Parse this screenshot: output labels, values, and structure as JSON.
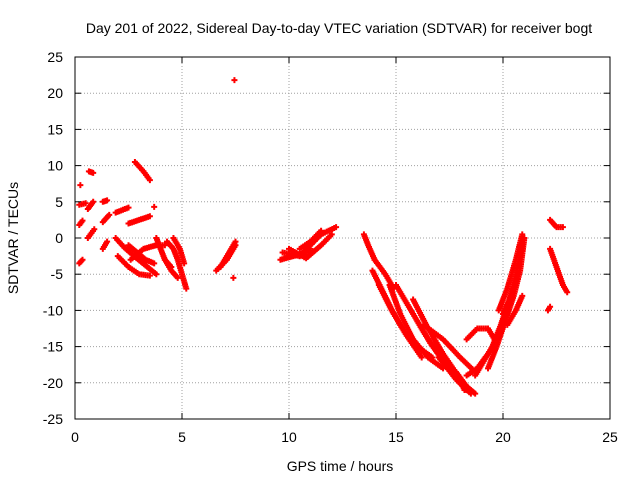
{
  "chart_data": {
    "type": "scatter",
    "title": "Day 201 of 2022, Sidereal Day-to-day VTEC variation (SDTVAR) for receiver bogt",
    "xlabel": "GPS time / hours",
    "ylabel": "SDTVAR / TECUs",
    "xlim": [
      0,
      25
    ],
    "ylim": [
      -25,
      25
    ],
    "xticks": [
      "0",
      "5",
      "10",
      "15",
      "20",
      "25"
    ],
    "yticks": [
      "-25",
      "-20",
      "-15",
      "-10",
      "-5",
      "0",
      "5",
      "10",
      "15",
      "20",
      "25"
    ],
    "grid": true,
    "marker": "plus",
    "series_color": "#ff0000",
    "segments": [
      [
        [
          0.2,
          -3.5
        ],
        [
          0.35,
          -3.0
        ]
      ],
      [
        [
          0.2,
          1.8
        ],
        [
          0.35,
          2.4
        ]
      ],
      [
        [
          0.2,
          4.6
        ],
        [
          0.5,
          4.8
        ]
      ],
      [
        [
          0.25,
          7.3
        ]
      ],
      [
        [
          0.6,
          4.0
        ],
        [
          0.85,
          5.0
        ]
      ],
      [
        [
          0.65,
          9.2
        ],
        [
          0.85,
          9.0
        ]
      ],
      [
        [
          0.6,
          0.0
        ],
        [
          0.9,
          1.2
        ]
      ],
      [
        [
          1.3,
          5.0
        ],
        [
          1.5,
          5.2
        ]
      ],
      [
        [
          1.3,
          2.2
        ],
        [
          1.6,
          3.2
        ]
      ],
      [
        [
          1.3,
          -1.5
        ],
        [
          1.5,
          -0.5
        ]
      ],
      [
        [
          1.9,
          3.5
        ],
        [
          2.5,
          4.2
        ]
      ],
      [
        [
          2.5,
          2.0
        ],
        [
          3.0,
          2.5
        ],
        [
          3.5,
          3.0
        ]
      ],
      [
        [
          3.7,
          4.3
        ]
      ],
      [
        [
          1.9,
          0.0
        ],
        [
          2.3,
          -1.3
        ],
        [
          2.8,
          -2.6
        ],
        [
          3.3,
          -3.8
        ],
        [
          3.8,
          -5.0
        ]
      ],
      [
        [
          2.0,
          -2.5
        ],
        [
          2.5,
          -4.0
        ],
        [
          3.0,
          -5.0
        ],
        [
          3.5,
          -5.2
        ]
      ],
      [
        [
          2.5,
          -1.0
        ],
        [
          2.9,
          -2.0
        ],
        [
          3.3,
          -3.0
        ],
        [
          3.7,
          -3.5
        ]
      ],
      [
        [
          2.8,
          10.5
        ],
        [
          3.2,
          9.2
        ],
        [
          3.5,
          8.0
        ]
      ],
      [
        [
          2.6,
          -3.0
        ],
        [
          3.2,
          -1.5
        ],
        [
          3.8,
          -1.0
        ],
        [
          4.2,
          -1.0
        ]
      ],
      [
        [
          3.8,
          0.0
        ],
        [
          4.0,
          -1.5
        ],
        [
          4.2,
          -3.0
        ],
        [
          4.5,
          -4.0
        ]
      ],
      [
        [
          4.3,
          -0.5
        ],
        [
          4.6,
          -1.5
        ],
        [
          4.8,
          -3.0
        ],
        [
          5.0,
          -5.0
        ],
        [
          5.2,
          -7.0
        ]
      ],
      [
        [
          4.6,
          0.0
        ],
        [
          4.9,
          -1.5
        ],
        [
          5.1,
          -3.5
        ]
      ],
      [
        [
          4.2,
          -3.0
        ],
        [
          4.5,
          -4.5
        ],
        [
          4.8,
          -5.5
        ]
      ],
      [
        [
          6.6,
          -4.5
        ],
        [
          7.1,
          -3.0
        ],
        [
          7.5,
          -1.0
        ]
      ],
      [
        [
          6.8,
          -4.0
        ],
        [
          7.2,
          -2.0
        ],
        [
          7.5,
          -0.5
        ]
      ],
      [
        [
          7.4,
          -5.5
        ]
      ],
      [
        [
          7.45,
          21.8
        ]
      ],
      [
        [
          9.6,
          -3.0
        ],
        [
          10.2,
          -2.5
        ],
        [
          10.8,
          -2.0
        ]
      ],
      [
        [
          9.7,
          -2.0
        ],
        [
          10.5,
          -2.5
        ],
        [
          11.0,
          -1.5
        ]
      ],
      [
        [
          10.0,
          -1.5
        ],
        [
          10.8,
          -2.8
        ],
        [
          11.5,
          -1.0
        ],
        [
          12.0,
          0.5
        ]
      ],
      [
        [
          10.5,
          -2.5
        ],
        [
          11.0,
          -1.0
        ],
        [
          11.5,
          0.5
        ],
        [
          12.2,
          1.5
        ]
      ],
      [
        [
          10.5,
          -1.5
        ],
        [
          11.0,
          -0.5
        ],
        [
          11.5,
          1.0
        ]
      ],
      [
        [
          13.5,
          0.5
        ],
        [
          13.7,
          -1.0
        ],
        [
          14.0,
          -3.0
        ]
      ],
      [
        [
          14.0,
          -3.0
        ],
        [
          14.5,
          -5.0
        ],
        [
          14.9,
          -7.0
        ]
      ],
      [
        [
          13.9,
          -4.5
        ],
        [
          14.4,
          -7.5
        ],
        [
          14.9,
          -10.5
        ],
        [
          15.5,
          -13.5
        ],
        [
          16.2,
          -16.5
        ]
      ],
      [
        [
          14.2,
          -6.5
        ],
        [
          14.8,
          -10.0
        ],
        [
          15.4,
          -13.0
        ],
        [
          16.0,
          -15.0
        ],
        [
          16.7,
          -16.5
        ]
      ],
      [
        [
          14.7,
          -6.5
        ],
        [
          15.2,
          -10.5
        ],
        [
          15.8,
          -14.0
        ],
        [
          16.5,
          -16.5
        ],
        [
          17.2,
          -18.0
        ]
      ],
      [
        [
          15.0,
          -6.5
        ],
        [
          15.7,
          -10.0
        ],
        [
          16.4,
          -13.5
        ],
        [
          17.1,
          -16.5
        ],
        [
          17.8,
          -19.0
        ]
      ],
      [
        [
          15.8,
          -8.5
        ],
        [
          16.5,
          -12.5
        ],
        [
          17.2,
          -16.0
        ],
        [
          17.9,
          -19.0
        ],
        [
          18.2,
          -21.0
        ]
      ],
      [
        [
          16.0,
          -11.5
        ],
        [
          16.6,
          -14.5
        ],
        [
          17.2,
          -17.0
        ],
        [
          17.8,
          -19.5
        ],
        [
          18.3,
          -21.0
        ]
      ],
      [
        [
          16.3,
          -12.0
        ],
        [
          17.2,
          -14.0
        ],
        [
          18.0,
          -16.5
        ],
        [
          18.7,
          -18.5
        ]
      ],
      [
        [
          17.0,
          -16.5
        ],
        [
          17.8,
          -19.5
        ],
        [
          18.5,
          -21.5
        ]
      ],
      [
        [
          17.8,
          -18.5
        ],
        [
          18.3,
          -20.5
        ],
        [
          18.7,
          -21.5
        ]
      ],
      [
        [
          18.3,
          -14.0
        ],
        [
          18.8,
          -12.5
        ],
        [
          19.3,
          -12.5
        ],
        [
          19.6,
          -14.0
        ]
      ],
      [
        [
          18.3,
          -19.0
        ],
        [
          18.8,
          -18.0
        ],
        [
          19.3,
          -16.0
        ]
      ],
      [
        [
          18.7,
          -19.0
        ],
        [
          19.1,
          -17.0
        ],
        [
          19.5,
          -15.0
        ],
        [
          19.9,
          -12.0
        ],
        [
          20.3,
          -8.5
        ],
        [
          20.6,
          -5.0
        ],
        [
          20.9,
          -1.0
        ]
      ],
      [
        [
          19.3,
          -18.0
        ],
        [
          19.7,
          -15.0
        ],
        [
          20.1,
          -11.5
        ],
        [
          20.5,
          -8.0
        ],
        [
          20.8,
          -4.5
        ],
        [
          21.0,
          0.0
        ]
      ],
      [
        [
          19.8,
          -10.0
        ],
        [
          20.2,
          -7.0
        ],
        [
          20.6,
          -3.0
        ],
        [
          20.9,
          0.5
        ]
      ],
      [
        [
          20.0,
          -10.5
        ],
        [
          20.3,
          -8.5
        ],
        [
          20.6,
          -6.0
        ]
      ],
      [
        [
          20.2,
          -12.0
        ],
        [
          20.6,
          -10.0
        ],
        [
          20.9,
          -8.0
        ]
      ],
      [
        [
          22.1,
          -10.0
        ],
        [
          22.2,
          -9.5
        ]
      ],
      [
        [
          22.2,
          2.5
        ],
        [
          22.5,
          1.5
        ],
        [
          22.8,
          1.5
        ]
      ],
      [
        [
          22.2,
          -1.5
        ],
        [
          22.5,
          -4.0
        ],
        [
          22.8,
          -6.5
        ],
        [
          23.0,
          -7.5
        ]
      ]
    ]
  }
}
